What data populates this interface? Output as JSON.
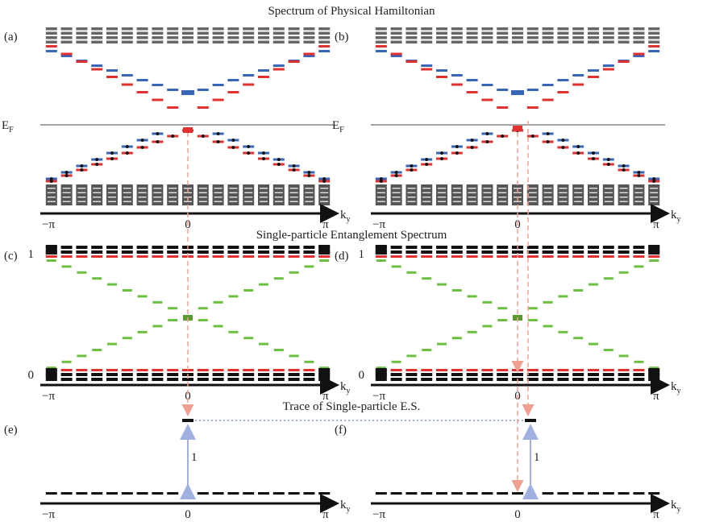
{
  "titles": {
    "hamiltonian": "Spectrum of Physical Hamiltonian",
    "entanglement": "Single-particle Entanglement Spectrum",
    "trace": "Trace of Single-particle E.S."
  },
  "panel_labels": [
    "(a)",
    "(b)",
    "(c)",
    "(d)",
    "(e)",
    "(f)"
  ],
  "fermi_level": {
    "symbol": "E",
    "subscript": "F"
  },
  "axis": {
    "left": "−π",
    "center": "0",
    "right": "π",
    "momentum": "k",
    "subscript": "y"
  },
  "es_ticks": {
    "upper": "1",
    "lower": "0"
  },
  "trace_gap": "1"
}
